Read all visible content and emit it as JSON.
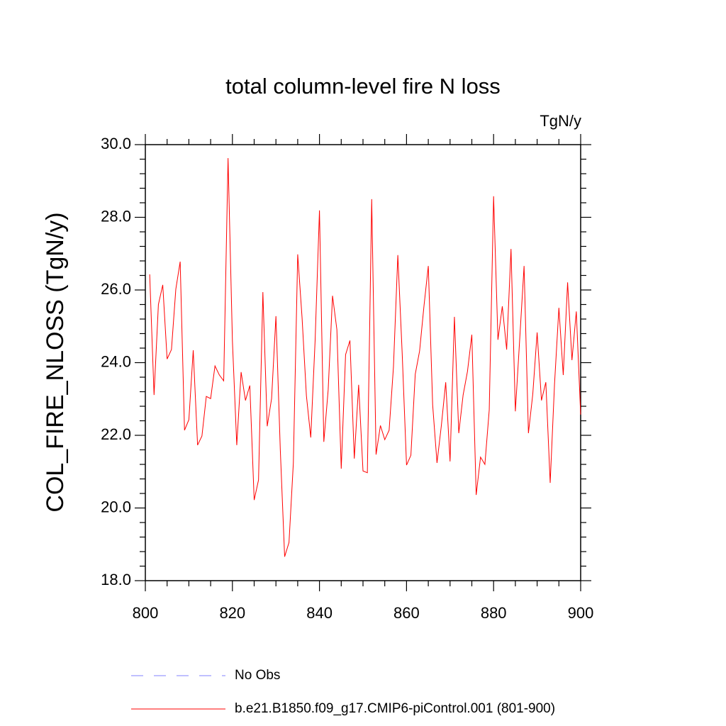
{
  "chart_data": {
    "type": "line",
    "title": "total column-level fire N loss",
    "units": "TgN/y",
    "y_label": "COL_FIRE_NLOSS  (TgN/y)",
    "x": [
      801,
      802,
      803,
      804,
      805,
      806,
      807,
      808,
      809,
      810,
      811,
      812,
      813,
      814,
      815,
      816,
      817,
      818,
      819,
      820,
      821,
      822,
      823,
      824,
      825,
      826,
      827,
      828,
      829,
      830,
      831,
      832,
      833,
      834,
      835,
      836,
      837,
      838,
      839,
      840,
      841,
      842,
      843,
      844,
      845,
      846,
      847,
      848,
      849,
      850,
      851,
      852,
      853,
      854,
      855,
      856,
      857,
      858,
      859,
      860,
      861,
      862,
      863,
      864,
      865,
      866,
      867,
      868,
      869,
      870,
      871,
      872,
      873,
      874,
      875,
      876,
      877,
      878,
      879,
      880,
      881,
      882,
      883,
      884,
      885,
      886,
      887,
      888,
      889,
      890,
      891,
      892,
      893,
      894,
      895,
      896,
      897,
      898,
      899,
      900
    ],
    "series": [
      {
        "name": "b.e21.B1850.f09_g17.CMIP6-piControl.001 (801-900)",
        "color": "#ff0000",
        "values": [
          26.43,
          23.11,
          25.6,
          26.14,
          24.1,
          24.36,
          26.02,
          26.78,
          22.14,
          22.43,
          24.34,
          21.73,
          21.98,
          23.07,
          23.01,
          23.91,
          23.66,
          23.5,
          29.63,
          24.6,
          21.73,
          23.74,
          22.96,
          23.37,
          20.22,
          20.77,
          25.94,
          22.25,
          23.01,
          25.28,
          21.61,
          18.66,
          19.05,
          21.24,
          26.98,
          25.24,
          23.09,
          21.94,
          24.61,
          28.19,
          21.82,
          23.25,
          25.84,
          24.91,
          21.08,
          24.22,
          24.61,
          21.36,
          23.39,
          21.02,
          20.97,
          28.5,
          21.47,
          22.27,
          21.88,
          22.14,
          23.89,
          26.96,
          24.26,
          21.18,
          21.45,
          23.68,
          24.32,
          25.55,
          26.66,
          22.84,
          21.24,
          22.27,
          23.46,
          21.28,
          25.26,
          22.06,
          23.11,
          23.76,
          24.77,
          20.36,
          21.4,
          21.2,
          22.7,
          28.58,
          24.63,
          25.55,
          24.36,
          27.13,
          22.66,
          24.65,
          26.66,
          22.06,
          23.13,
          24.83,
          22.96,
          23.46,
          20.69,
          23.42,
          25.51,
          23.66,
          26.21,
          24.07,
          25.41,
          22.57
        ]
      }
    ],
    "legend": [
      {
        "label": "No Obs",
        "color": "#8080ff",
        "dash": true
      },
      {
        "label": "b.e21.B1850.f09_g17.CMIP6-piControl.001 (801-900)",
        "color": "#ff0000",
        "dash": false
      }
    ],
    "xlim": [
      800,
      900
    ],
    "xticks": [
      800,
      820,
      840,
      860,
      880,
      900
    ],
    "xminorticks": [
      805,
      810,
      815,
      825,
      830,
      835,
      845,
      850,
      855,
      865,
      870,
      875,
      885,
      890,
      895
    ],
    "ylim": [
      18,
      30
    ],
    "yticks": [
      {
        "value": 18,
        "label": "18.0"
      },
      {
        "value": 20,
        "label": "20.0"
      },
      {
        "value": 22,
        "label": "22.0"
      },
      {
        "value": 24,
        "label": "24.0"
      },
      {
        "value": 26,
        "label": "26.0"
      },
      {
        "value": 28,
        "label": "28.0"
      },
      {
        "value": 30,
        "label": "30.0"
      }
    ],
    "yminorticks": [
      18.4,
      18.8,
      19.2,
      19.6,
      20.4,
      20.8,
      21.2,
      21.6,
      22.4,
      22.8,
      23.2,
      23.6,
      24.4,
      24.8,
      25.2,
      25.6,
      26.4,
      26.8,
      27.2,
      27.6,
      28.4,
      28.8,
      29.2,
      29.6
    ]
  }
}
